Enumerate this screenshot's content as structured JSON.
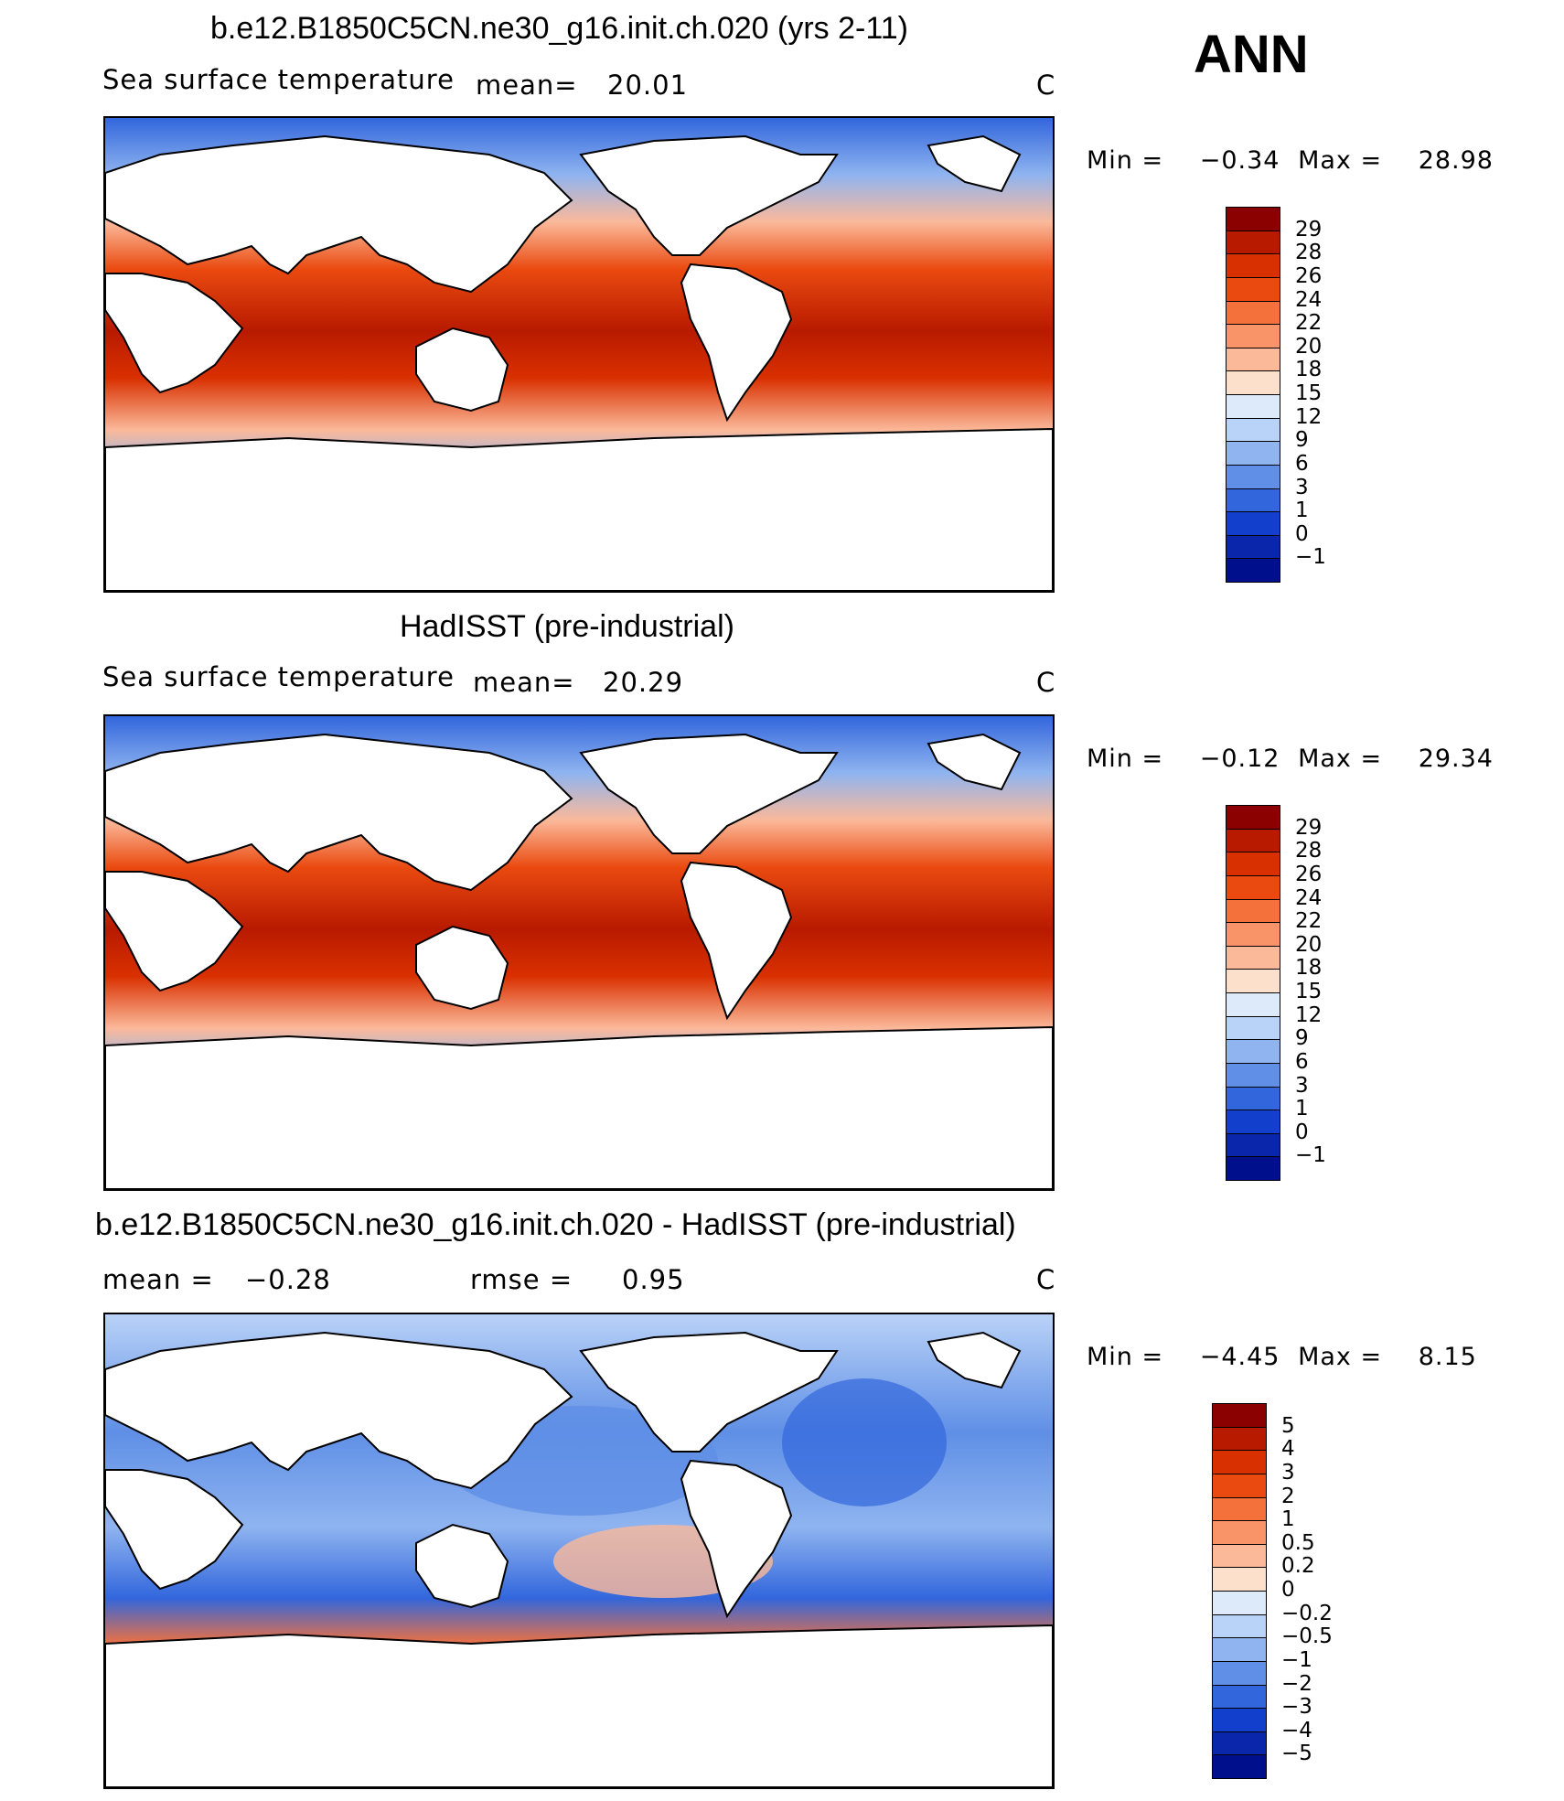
{
  "season": "ANN",
  "panels": [
    {
      "id": "model",
      "title": "b.e12.B1850C5CN.ne30_g16.init.ch.020 (yrs 2-11)",
      "left_label": "Sea surface temperature",
      "stat_label": "mean=",
      "stat_value": "20.01",
      "unit": "C",
      "minmax": {
        "min_label": "Min =",
        "min_value": "−0.34",
        "max_label": "Max =",
        "max_value": "28.98"
      },
      "colorbar": {
        "labels": [
          "29",
          "28",
          "26",
          "24",
          "22",
          "20",
          "18",
          "15",
          "12",
          "9",
          "6",
          "3",
          "1",
          "0",
          "−1"
        ],
        "colors": [
          "#8b0000",
          "#b81a00",
          "#d93000",
          "#ea4a10",
          "#f4713c",
          "#f89468",
          "#fbb99a",
          "#fde0cc",
          "#dceafa",
          "#b9d2f7",
          "#8fb4f0",
          "#5f8fe6",
          "#3266dc",
          "#1240cc",
          "#0a26aa",
          "#00108c"
        ]
      }
    },
    {
      "id": "obs",
      "title": "HadISST (pre-industrial)",
      "left_label": "Sea surface temperature",
      "stat_label": "mean=",
      "stat_value": "20.29",
      "unit": "C",
      "minmax": {
        "min_label": "Min =",
        "min_value": "−0.12",
        "max_label": "Max =",
        "max_value": "29.34"
      },
      "colorbar": {
        "labels": [
          "29",
          "28",
          "26",
          "24",
          "22",
          "20",
          "18",
          "15",
          "12",
          "9",
          "6",
          "3",
          "1",
          "0",
          "−1"
        ],
        "colors": [
          "#8b0000",
          "#b81a00",
          "#d93000",
          "#ea4a10",
          "#f4713c",
          "#f89468",
          "#fbb99a",
          "#fde0cc",
          "#dceafa",
          "#b9d2f7",
          "#8fb4f0",
          "#5f8fe6",
          "#3266dc",
          "#1240cc",
          "#0a26aa",
          "#00108c"
        ]
      }
    },
    {
      "id": "diff",
      "title": "b.e12.B1850C5CN.ne30_g16.init.ch.020 - HadISST (pre-industrial)",
      "left_label": "mean =",
      "left_value": "−0.28",
      "stat_label": "rmse =",
      "stat_value": "0.95",
      "unit": "C",
      "minmax": {
        "min_label": "Min =",
        "min_value": "−4.45",
        "max_label": "Max =",
        "max_value": "8.15"
      },
      "colorbar": {
        "labels": [
          "5",
          "4",
          "3",
          "2",
          "1",
          "0.5",
          "0.2",
          "0",
          "−0.2",
          "−0.5",
          "−1",
          "−2",
          "−3",
          "−4",
          "−5"
        ],
        "colors": [
          "#8b0000",
          "#b81a00",
          "#d93000",
          "#ea4a10",
          "#f4713c",
          "#f89468",
          "#fbb99a",
          "#fde0cc",
          "#dceafa",
          "#b9d2f7",
          "#8fb4f0",
          "#5f8fe6",
          "#3266dc",
          "#1240cc",
          "#0a26aa",
          "#00108c"
        ]
      }
    }
  ]
}
